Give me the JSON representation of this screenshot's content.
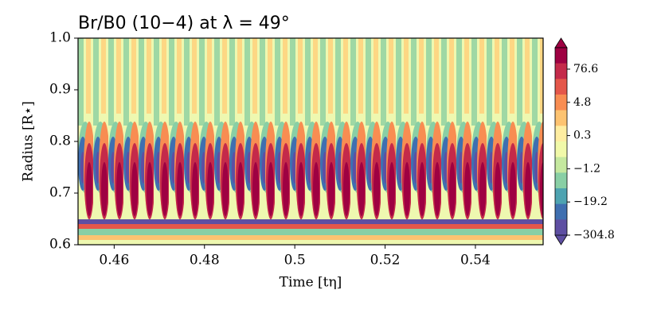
{
  "chart_data": {
    "type": "contour",
    "title": "Br/B0 (10−4) at λ = 49°",
    "x_label": "Time [tη]",
    "y_label": "Radius [R⋆]",
    "xlim": [
      0.452,
      0.555
    ],
    "xticks": [
      0.46,
      0.48,
      0.5,
      {
        "value": 0.52,
        "label": "0.52"
      },
      0.54
    ],
    "ylim": [
      0.6,
      1.0
    ],
    "yticks": [
      0.6,
      0.7,
      0.8,
      0.9,
      {
        "value": 1.0,
        "label": "1.0"
      }
    ],
    "colorbar": {
      "colors": [
        "#9e0142",
        "#c42a4a",
        "#e4574a",
        "#f88d52",
        "#fdc371",
        "#feeda1",
        "#f1f9a9",
        "#c5e89f",
        "#89cfa5",
        "#4ea3b1",
        "#3f6fb0",
        "#5e4fa2"
      ],
      "ticks": [
        76.6,
        4.8,
        0.3,
        {
          "value": -1.2,
          "label": "−1.2"
        },
        {
          "value": -19.2,
          "label": "−19.2"
        },
        {
          "value": -304.8,
          "label": "−304.8"
        }
      ]
    }
  }
}
